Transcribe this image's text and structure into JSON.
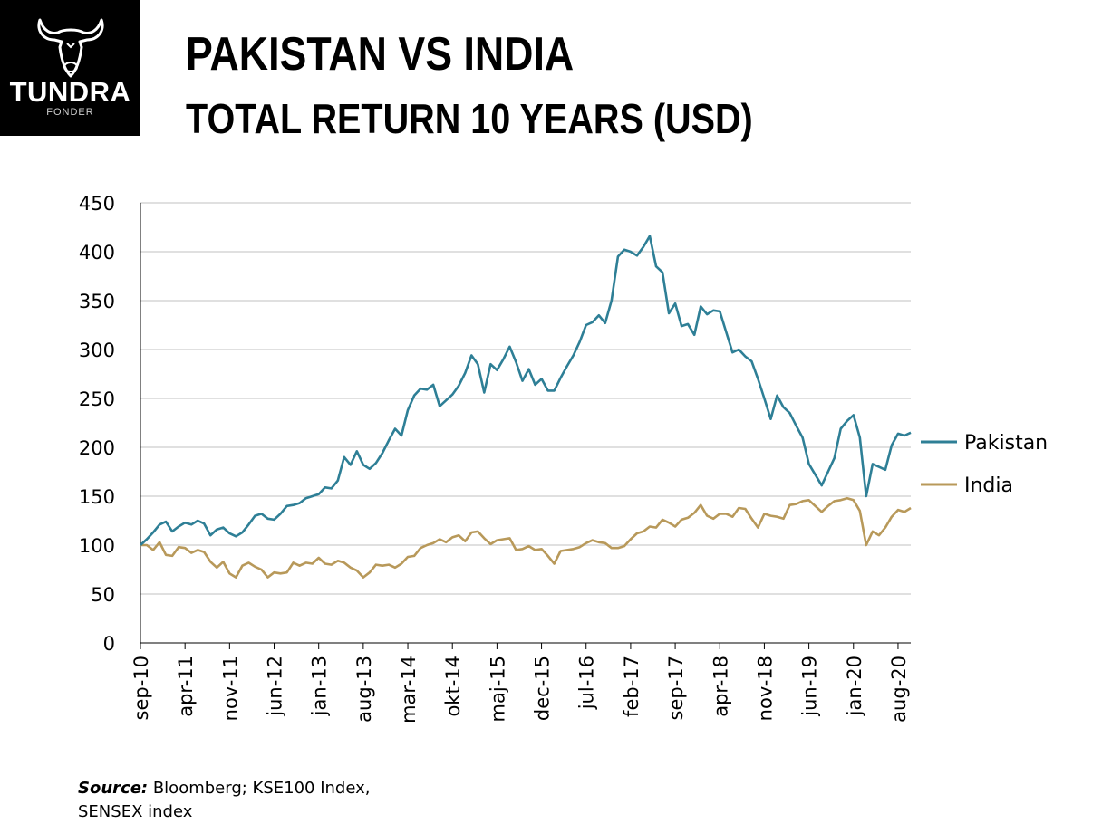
{
  "logo": {
    "brand": "TUNDRA",
    "sub": "FONDER"
  },
  "title": "PAKISTAN VS INDIA",
  "subtitle": "TOTAL RETURN 10 YEARS (USD)",
  "source": {
    "label": "Source:",
    "line1": " Bloomberg; KSE100 Index,",
    "line2": "SENSEX index"
  },
  "colors": {
    "pakistan": "#2E7F96",
    "india": "#B8995A",
    "grid": "#C0C0C0",
    "axis": "#000000"
  },
  "chart_data": {
    "type": "line",
    "title": "",
    "xlabel": "",
    "ylabel": "",
    "ylim": [
      0,
      450
    ],
    "yticks": [
      0,
      50,
      100,
      150,
      200,
      250,
      300,
      350,
      400,
      450
    ],
    "grid": true,
    "legend_position": "right",
    "xtick_labels": [
      "sep-10",
      "apr-11",
      "nov-11",
      "jun-12",
      "jan-13",
      "aug-13",
      "mar-14",
      "okt-14",
      "maj-15",
      "dec-15",
      "jul-16",
      "feb-17",
      "sep-17",
      "apr-18",
      "nov-18",
      "jun-19",
      "jan-20",
      "aug-20"
    ],
    "series": [
      {
        "name": "Pakistan",
        "color": "#2E7F96",
        "values": [
          100,
          106,
          113,
          121,
          124,
          114,
          119,
          123,
          121,
          125,
          122,
          110,
          116,
          118,
          112,
          109,
          113,
          121,
          130,
          132,
          127,
          126,
          132,
          140,
          141,
          143,
          148,
          150,
          152,
          159,
          158,
          166,
          190,
          182,
          196,
          182,
          178,
          184,
          194,
          207,
          219,
          212,
          238,
          253,
          260,
          259,
          264,
          242,
          248,
          254,
          263,
          276,
          294,
          285,
          256,
          285,
          279,
          290,
          303,
          287,
          268,
          280,
          264,
          270,
          258,
          258,
          271,
          283,
          294,
          308,
          325,
          328,
          335,
          327,
          350,
          395,
          402,
          400,
          396,
          405,
          416,
          385,
          379,
          337,
          347,
          324,
          326,
          315,
          344,
          336,
          340,
          339,
          318,
          297,
          300,
          293,
          288,
          270,
          250,
          229,
          253,
          241,
          235,
          222,
          210,
          183,
          172,
          161,
          175,
          189,
          219,
          227,
          233,
          210,
          150,
          183,
          180,
          177,
          202,
          214,
          212,
          215
        ]
      },
      {
        "name": "India",
        "color": "#B8995A",
        "values": [
          100,
          100,
          95,
          103,
          90,
          89,
          98,
          97,
          92,
          95,
          93,
          83,
          77,
          83,
          71,
          67,
          79,
          82,
          78,
          75,
          67,
          72,
          71,
          72,
          82,
          79,
          82,
          81,
          87,
          81,
          80,
          84,
          82,
          77,
          74,
          67,
          72,
          80,
          79,
          80,
          77,
          81,
          88,
          89,
          97,
          100,
          102,
          106,
          103,
          108,
          110,
          104,
          113,
          114,
          107,
          101,
          105,
          106,
          107,
          95,
          96,
          99,
          95,
          96,
          89,
          81,
          94,
          95,
          96,
          98,
          102,
          105,
          103,
          102,
          97,
          97,
          99,
          106,
          112,
          114,
          119,
          118,
          126,
          123,
          119,
          126,
          128,
          133,
          141,
          130,
          127,
          132,
          132,
          129,
          138,
          137,
          127,
          118,
          132,
          130,
          129,
          127,
          141,
          142,
          145,
          146,
          140,
          134,
          140,
          145,
          146,
          148,
          146,
          135,
          100,
          114,
          110,
          118,
          129,
          136,
          134,
          138
        ]
      }
    ]
  }
}
